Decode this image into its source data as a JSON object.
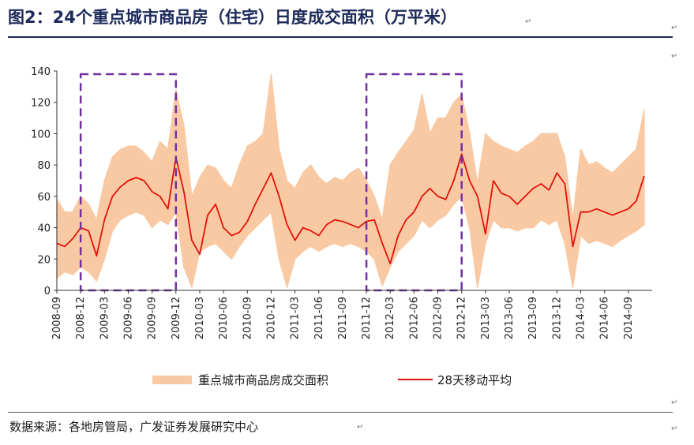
{
  "header": {
    "title": "图2：24个重点城市商品房（住宅）日度成交面积（万平米）",
    "para_mark": "↵"
  },
  "footer": {
    "source": "数据来源：各地房管局，广发证券发展研究中心"
  },
  "colors": {
    "daily": "#f9c9a3",
    "moving_avg": "#e3120b",
    "highlight_box": "#7030a0",
    "title": "#1d2a5a"
  },
  "chart_data": {
    "type": "line",
    "ylim": [
      0,
      140
    ],
    "yticks": [
      0,
      20,
      40,
      60,
      80,
      100,
      120,
      140
    ],
    "xlim": [
      "2008-09",
      "2014-12"
    ],
    "x_tick_labels": [
      "2008-09",
      "2008-12",
      "2009-03",
      "2009-06",
      "2009-09",
      "2009-12",
      "2010-03",
      "2010-06",
      "2010-09",
      "2010-12",
      "2011-03",
      "2011-06",
      "2011-09",
      "2011-12",
      "2012-03",
      "2012-06",
      "2012-09",
      "2012-12",
      "2013-03",
      "2013-06",
      "2013-09",
      "2013-12",
      "2014-03",
      "2014-06",
      "2014-09"
    ],
    "grid": false,
    "legend_position": "bottom",
    "series": [
      {
        "name": "重点城市商品房成交面积",
        "style": "area-band",
        "x": [
          "2008-09",
          "2008-10",
          "2008-11",
          "2008-12",
          "2009-01",
          "2009-02",
          "2009-03",
          "2009-04",
          "2009-05",
          "2009-06",
          "2009-07",
          "2009-08",
          "2009-09",
          "2009-10",
          "2009-11",
          "2009-12",
          "2010-01",
          "2010-02",
          "2010-03",
          "2010-04",
          "2010-05",
          "2010-06",
          "2010-07",
          "2010-08",
          "2010-09",
          "2010-10",
          "2010-11",
          "2010-12",
          "2011-01",
          "2011-02",
          "2011-03",
          "2011-04",
          "2011-05",
          "2011-06",
          "2011-07",
          "2011-08",
          "2011-09",
          "2011-10",
          "2011-11",
          "2011-12",
          "2012-01",
          "2012-02",
          "2012-03",
          "2012-04",
          "2012-05",
          "2012-06",
          "2012-07",
          "2012-08",
          "2012-09",
          "2012-10",
          "2012-11",
          "2012-12",
          "2013-01",
          "2013-02",
          "2013-03",
          "2013-04",
          "2013-05",
          "2013-06",
          "2013-07",
          "2013-08",
          "2013-09",
          "2013-10",
          "2013-11",
          "2013-12",
          "2014-01",
          "2014-02",
          "2014-03",
          "2014-04",
          "2014-05",
          "2014-06",
          "2014-07",
          "2014-08",
          "2014-09",
          "2014-10",
          "2014-11"
        ],
        "low": [
          8,
          12,
          10,
          15,
          12,
          6,
          20,
          38,
          45,
          48,
          50,
          48,
          40,
          45,
          42,
          50,
          15,
          2,
          25,
          28,
          30,
          25,
          20,
          28,
          35,
          40,
          45,
          50,
          20,
          2,
          20,
          25,
          28,
          25,
          28,
          30,
          28,
          30,
          28,
          25,
          20,
          3,
          15,
          25,
          30,
          35,
          45,
          40,
          45,
          48,
          55,
          60,
          40,
          2,
          30,
          45,
          40,
          40,
          38,
          40,
          40,
          45,
          42,
          45,
          30,
          2,
          35,
          30,
          32,
          30,
          28,
          32,
          35,
          38,
          42
        ],
        "high": [
          58,
          50,
          50,
          60,
          55,
          45,
          70,
          85,
          90,
          92,
          92,
          88,
          82,
          95,
          90,
          128,
          105,
          60,
          72,
          80,
          78,
          70,
          65,
          80,
          92,
          95,
          100,
          138,
          90,
          70,
          65,
          75,
          80,
          72,
          68,
          72,
          70,
          75,
          78,
          70,
          60,
          45,
          80,
          88,
          95,
          102,
          125,
          100,
          110,
          110,
          120,
          125,
          100,
          68,
          100,
          95,
          92,
          90,
          88,
          92,
          95,
          100,
          100,
          100,
          85,
          45,
          90,
          80,
          82,
          78,
          75,
          80,
          85,
          90,
          115
        ]
      },
      {
        "name": "28天移动平均",
        "style": "line",
        "x": [
          "2008-09",
          "2008-10",
          "2008-11",
          "2008-12",
          "2009-01",
          "2009-02",
          "2009-03",
          "2009-04",
          "2009-05",
          "2009-06",
          "2009-07",
          "2009-08",
          "2009-09",
          "2009-10",
          "2009-11",
          "2009-12",
          "2010-01",
          "2010-02",
          "2010-03",
          "2010-04",
          "2010-05",
          "2010-06",
          "2010-07",
          "2010-08",
          "2010-09",
          "2010-10",
          "2010-11",
          "2010-12",
          "2011-01",
          "2011-02",
          "2011-03",
          "2011-04",
          "2011-05",
          "2011-06",
          "2011-07",
          "2011-08",
          "2011-09",
          "2011-10",
          "2011-11",
          "2011-12",
          "2012-01",
          "2012-02",
          "2012-03",
          "2012-04",
          "2012-05",
          "2012-06",
          "2012-07",
          "2012-08",
          "2012-09",
          "2012-10",
          "2012-11",
          "2012-12",
          "2013-01",
          "2013-02",
          "2013-03",
          "2013-04",
          "2013-05",
          "2013-06",
          "2013-07",
          "2013-08",
          "2013-09",
          "2013-10",
          "2013-11",
          "2013-12",
          "2014-01",
          "2014-02",
          "2014-03",
          "2014-04",
          "2014-05",
          "2014-06",
          "2014-07",
          "2014-08",
          "2014-09",
          "2014-10",
          "2014-11"
        ],
        "y": [
          30,
          28,
          33,
          40,
          38,
          22,
          45,
          60,
          66,
          70,
          72,
          70,
          63,
          60,
          52,
          85,
          63,
          32,
          23,
          48,
          55,
          40,
          35,
          37,
          44,
          55,
          65,
          75,
          60,
          42,
          32,
          40,
          38,
          35,
          42,
          45,
          44,
          42,
          40,
          44,
          45,
          30,
          17,
          35,
          45,
          50,
          60,
          65,
          60,
          58,
          70,
          87,
          70,
          60,
          36,
          70,
          62,
          60,
          55,
          60,
          65,
          68,
          64,
          75,
          68,
          28,
          50,
          50,
          52,
          50,
          48,
          50,
          52,
          57,
          73
        ]
      }
    ],
    "highlight_boxes": [
      {
        "x_start": "2008-12",
        "x_end": "2009-12",
        "y_start": 0,
        "y_end": 138
      },
      {
        "x_start": "2011-12",
        "x_end": "2012-12",
        "y_start": 0,
        "y_end": 138
      }
    ]
  }
}
